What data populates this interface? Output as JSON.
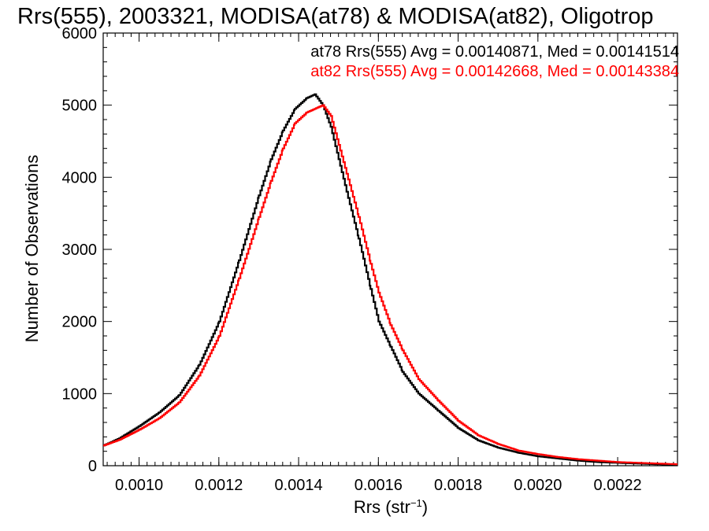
{
  "chart_data": {
    "type": "histogram-step",
    "title": "Rrs(555), 2003321, MODISA(at78) & MODISA(at82), Oligotrop",
    "xlabel": "Rrs (str",
    "xlabel_sup": "−1",
    "xlabel_close": ")",
    "ylabel": "Number of Observations",
    "xlim": [
      0.00091,
      0.00235
    ],
    "ylim": [
      0,
      6000
    ],
    "xticks": [
      0.001,
      0.0012,
      0.0014,
      0.0016,
      0.0018,
      0.002,
      0.0022
    ],
    "xtick_labels": [
      "0.0010",
      "0.0012",
      "0.0014",
      "0.0016",
      "0.0018",
      "0.0020",
      "0.0022"
    ],
    "yticks": [
      0,
      1000,
      2000,
      3000,
      4000,
      5000,
      6000
    ],
    "ytick_labels": [
      "0",
      "1000",
      "2000",
      "3000",
      "4000",
      "5000",
      "6000"
    ],
    "legend": [
      {
        "text": "at78 Rrs(555) Avg = 0.00140871, Med = 0.00141514",
        "color": "#000000"
      },
      {
        "text": "at82 Rrs(555) Avg = 0.00142668, Med = 0.00143384",
        "color": "#ff0000"
      }
    ],
    "series": [
      {
        "name": "at78",
        "color": "#000000",
        "x": [
          0.00091,
          0.00095,
          0.001,
          0.00105,
          0.0011,
          0.00115,
          0.0012,
          0.00125,
          0.0013,
          0.00133,
          0.00136,
          0.00139,
          0.00142,
          0.00144,
          0.00146,
          0.00148,
          0.0015,
          0.00152,
          0.00155,
          0.00158,
          0.0016,
          0.00163,
          0.00166,
          0.0017,
          0.00175,
          0.0018,
          0.00185,
          0.0019,
          0.00195,
          0.002,
          0.00205,
          0.0021,
          0.00215,
          0.0022,
          0.00225,
          0.0023,
          0.00235
        ],
        "y": [
          280,
          380,
          550,
          740,
          980,
          1400,
          2000,
          2850,
          3750,
          4250,
          4650,
          4950,
          5100,
          5150,
          5000,
          4700,
          4250,
          3800,
          3150,
          2450,
          2000,
          1650,
          1300,
          1000,
          760,
          520,
          350,
          250,
          180,
          130,
          100,
          70,
          50,
          40,
          30,
          20,
          10
        ]
      },
      {
        "name": "at82",
        "color": "#ff0000",
        "x": [
          0.00091,
          0.00095,
          0.001,
          0.00105,
          0.0011,
          0.00115,
          0.0012,
          0.00125,
          0.0013,
          0.00133,
          0.00136,
          0.00139,
          0.00142,
          0.00144,
          0.00146,
          0.00148,
          0.0015,
          0.00152,
          0.00155,
          0.00158,
          0.0016,
          0.00163,
          0.00166,
          0.0017,
          0.00175,
          0.0018,
          0.00185,
          0.0019,
          0.00195,
          0.002,
          0.00205,
          0.0021,
          0.00215,
          0.0022,
          0.00225,
          0.0023,
          0.00235
        ],
        "y": [
          280,
          360,
          500,
          660,
          880,
          1250,
          1800,
          2600,
          3450,
          3950,
          4400,
          4750,
          4900,
          4950,
          5000,
          4850,
          4450,
          4050,
          3450,
          2800,
          2400,
          1950,
          1600,
          1200,
          900,
          620,
          420,
          300,
          210,
          160,
          120,
          90,
          70,
          50,
          40,
          30,
          20
        ]
      }
    ]
  }
}
